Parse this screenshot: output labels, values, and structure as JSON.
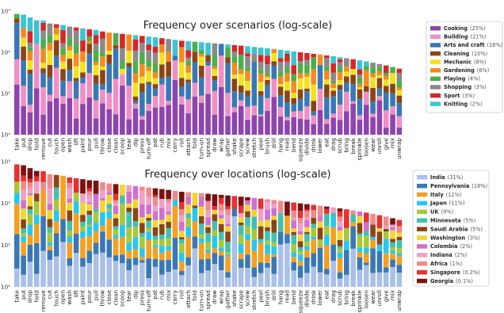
{
  "chart_data": [
    {
      "type": "bar",
      "stacked": true,
      "y_scale": "log",
      "title": "Frequency over scenarios (log-scale)",
      "ylim": [
        1,
        1000
      ],
      "y_ticks": [
        {
          "value": 1,
          "label": "10⁰"
        },
        {
          "value": 10,
          "label": "10¹"
        },
        {
          "value": 100,
          "label": "10²"
        },
        {
          "value": 1000,
          "label": "10³"
        }
      ],
      "categories": [
        "take",
        "put",
        "drop",
        "hold",
        "remove",
        "cut",
        "touch",
        "open",
        "wash",
        "lift",
        "paint",
        "pour",
        "pull",
        "throw",
        "close",
        "clean",
        "scoop",
        "tear",
        "dip",
        "press",
        "turn-off",
        "pat",
        "rub",
        "mix",
        "carry",
        "roll",
        "attach",
        "fold",
        "turn-on",
        "spread",
        "draw",
        "wrap",
        "gather",
        "shake",
        "scrape",
        "screw",
        "stretch",
        "peel",
        "brush",
        "drill",
        "hang",
        "read",
        "bend",
        "squeeze",
        "divide",
        "drink",
        "lower",
        "eat",
        "drag",
        "scrub",
        "bring",
        "break",
        "sprinkle",
        "loosen",
        "wear",
        "unroll",
        "give",
        "mix",
        "unwrap"
      ],
      "totals": [
        850,
        820,
        700,
        600,
        590,
        500,
        480,
        460,
        420,
        400,
        380,
        360,
        350,
        320,
        300,
        290,
        280,
        270,
        260,
        250,
        240,
        230,
        220,
        210,
        200,
        190,
        185,
        180,
        175,
        170,
        165,
        160,
        155,
        150,
        145,
        140,
        135,
        130,
        125,
        120,
        115,
        110,
        105,
        100,
        96,
        92,
        88,
        84,
        80,
        76,
        72,
        68,
        64,
        60,
        56,
        52,
        48,
        44,
        40
      ],
      "legend": {
        "location": "right",
        "entries": [
          {
            "name": "Cooking",
            "pct": "(25%)",
            "color": "#8e44ad"
          },
          {
            "name": "Building",
            "pct": "(21%)",
            "color": "#ef8fc6"
          },
          {
            "name": "Arts and craft",
            "pct": "(18%)",
            "color": "#3a78b5"
          },
          {
            "name": "Cleaning",
            "pct": "(10%)",
            "color": "#8b4513"
          },
          {
            "name": "Mechanic",
            "pct": "(8%)",
            "color": "#f5e11a"
          },
          {
            "name": "Gardening",
            "pct": "(6%)",
            "color": "#f58a1f"
          },
          {
            "name": "Playing",
            "pct": "(4%)",
            "color": "#4cae4c"
          },
          {
            "name": "Shopping",
            "pct": "(3%)",
            "color": "#8a8a8a"
          },
          {
            "name": "Sport",
            "pct": "(3%)",
            "color": "#d62728"
          },
          {
            "name": "Knitting",
            "pct": "(2%)",
            "color": "#3cc4d3"
          }
        ]
      }
    },
    {
      "type": "bar",
      "stacked": true,
      "y_scale": "log",
      "title": "Frequency over locations (log-scale)",
      "ylim": [
        1,
        1000
      ],
      "y_ticks": [
        {
          "value": 1,
          "label": "10⁰"
        },
        {
          "value": 10,
          "label": "10¹"
        },
        {
          "value": 100,
          "label": "10²"
        },
        {
          "value": 1000,
          "label": "10³"
        }
      ],
      "categories": [
        "take",
        "put",
        "drop",
        "hold",
        "remove",
        "cut",
        "touch",
        "open",
        "wash",
        "lift",
        "paint",
        "pour",
        "pull",
        "throw",
        "close",
        "clean",
        "scoop",
        "tear",
        "dip",
        "press",
        "turn-off",
        "pat",
        "rub",
        "mix",
        "carry",
        "roll",
        "attach",
        "fold",
        "turn-on",
        "spread",
        "draw",
        "wrap",
        "gather",
        "shake",
        "scrape",
        "screw",
        "stretch",
        "peel",
        "brush",
        "drill",
        "hang",
        "read",
        "bend",
        "squeeze",
        "divide",
        "drink",
        "lower",
        "eat",
        "drag",
        "scrub",
        "bring",
        "break",
        "sprinkle",
        "loosen",
        "wear",
        "unroll",
        "give",
        "mix",
        "unwrap"
      ],
      "totals": [
        860,
        820,
        700,
        600,
        590,
        500,
        480,
        460,
        420,
        400,
        380,
        360,
        350,
        320,
        300,
        290,
        280,
        270,
        260,
        250,
        240,
        230,
        220,
        210,
        200,
        190,
        185,
        180,
        175,
        170,
        165,
        160,
        155,
        150,
        145,
        140,
        135,
        130,
        125,
        120,
        115,
        110,
        105,
        100,
        96,
        92,
        88,
        84,
        80,
        76,
        72,
        68,
        64,
        60,
        56,
        52,
        48,
        44,
        40
      ],
      "legend": {
        "location": "right",
        "entries": [
          {
            "name": "India",
            "pct": "(31%)",
            "color": "#a9c0e8"
          },
          {
            "name": "Pennsylvania",
            "pct": "(18%)",
            "color": "#3a78b5"
          },
          {
            "name": "Italy",
            "pct": "(12%)",
            "color": "#f5a020"
          },
          {
            "name": "Japan",
            "pct": "(11%)",
            "color": "#27c7f0"
          },
          {
            "name": "UK",
            "pct": "(9%)",
            "color": "#a8c838"
          },
          {
            "name": "Minnesota",
            "pct": "(5%)",
            "color": "#42c0b0"
          },
          {
            "name": "Saudi Arabia",
            "pct": "(5%)",
            "color": "#8b4513"
          },
          {
            "name": "Washington",
            "pct": "(3%)",
            "color": "#f5d430"
          },
          {
            "name": "Colombia",
            "pct": "(2%)",
            "color": "#d070d0"
          },
          {
            "name": "Indiana",
            "pct": "(2%)",
            "color": "#f0a0c8"
          },
          {
            "name": "Africa",
            "pct": "(1%)",
            "color": "#f08a8a"
          },
          {
            "name": "Singapore",
            "pct": "(0.2%)",
            "color": "#e83030"
          },
          {
            "name": "Georgia",
            "pct": "(0.1%)",
            "color": "#7a1010"
          }
        ]
      }
    }
  ]
}
